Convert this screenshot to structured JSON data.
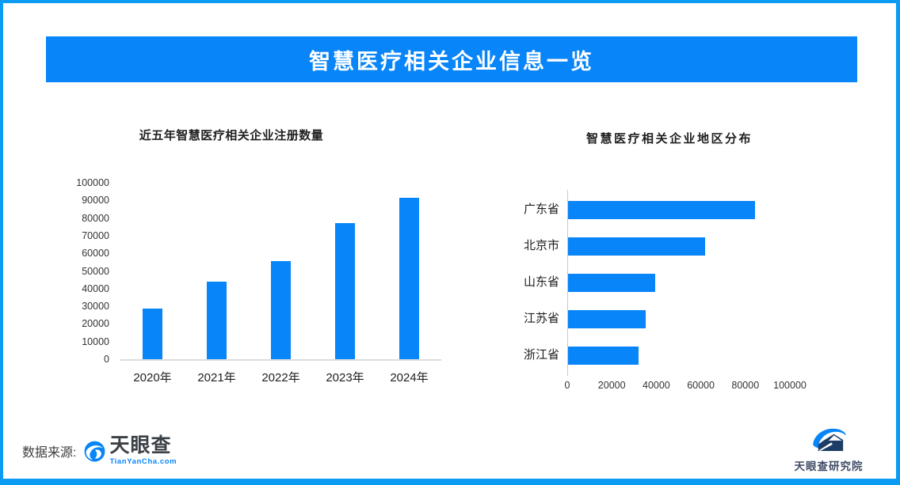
{
  "colors": {
    "accent": "#0885F9",
    "border": "#0C9BF2",
    "axis_line_light": "#dcdcdc",
    "axis_line_gray": "#c9c9c9",
    "text_dark": "#1f1f1f",
    "navy": "#1C3E66"
  },
  "header": {
    "title": "智慧医疗相关企业信息一览"
  },
  "footer": {
    "source_label": "数据来源:",
    "tianyancha_name": "天眼查",
    "tianyancha_domain": "TianYanCha.com",
    "institute_name": "天眼查研究院"
  },
  "chart_data": [
    {
      "type": "bar",
      "title": "近五年智慧医疗相关企业注册数量",
      "categories": [
        "2020年",
        "2021年",
        "2022年",
        "2023年",
        "2024年"
      ],
      "values": [
        28500,
        44000,
        55500,
        77000,
        91500
      ],
      "xlabel": "",
      "ylabel": "",
      "ylim": [
        0,
        100000
      ],
      "y_ticks": [
        0,
        10000,
        20000,
        30000,
        40000,
        50000,
        60000,
        70000,
        80000,
        90000,
        100000
      ],
      "grid": false,
      "legend": false,
      "bar_color": "#0885F9"
    },
    {
      "type": "bar",
      "orientation": "horizontal",
      "title": "智慧医疗相关企业地区分布",
      "categories": [
        "广东省",
        "北京市",
        "山东省",
        "江苏省",
        "浙江省"
      ],
      "values": [
        84000,
        61500,
        39000,
        35000,
        31500
      ],
      "xlabel": "",
      "ylabel": "",
      "xlim": [
        0,
        100000
      ],
      "x_ticks": [
        0,
        20000,
        40000,
        60000,
        80000,
        100000
      ],
      "grid": false,
      "legend": false,
      "bar_color": "#0885F9"
    }
  ]
}
